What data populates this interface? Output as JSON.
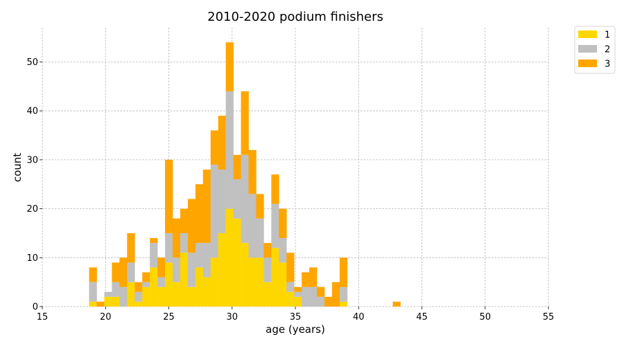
{
  "chart_data": {
    "type": "histogram-stacked",
    "title": "2010-2020 podium finishers",
    "xlabel": "age (years)",
    "ylabel": "count",
    "xlim": [
      15,
      55
    ],
    "ylim": [
      0,
      57
    ],
    "xticks": [
      15,
      20,
      25,
      30,
      35,
      40,
      45,
      50,
      55
    ],
    "yticks": [
      0,
      10,
      20,
      30,
      40,
      50
    ],
    "grid": true,
    "legend_position": "outside-top-right",
    "bin_width": 0.6,
    "bin_starts": [
      18.7,
      19.3,
      19.9,
      20.5,
      21.1,
      21.7,
      22.3,
      22.9,
      23.5,
      24.1,
      24.7,
      25.3,
      25.9,
      26.5,
      27.1,
      27.7,
      28.3,
      28.9,
      29.5,
      30.1,
      30.7,
      31.3,
      31.9,
      32.5,
      33.1,
      33.7,
      34.3,
      34.9,
      35.5,
      36.1,
      36.7,
      37.3,
      37.9,
      38.5,
      42.7
    ],
    "series": [
      {
        "name": "1",
        "color": "#FFD700",
        "values": [
          1,
          0,
          2,
          2,
          0,
          5,
          1,
          4,
          8,
          4,
          9,
          5,
          11,
          4,
          8,
          6,
          10,
          15,
          20,
          18,
          13,
          10,
          10,
          5,
          12,
          9,
          3,
          2,
          0,
          0,
          0,
          0,
          0,
          1,
          0
        ]
      },
      {
        "name": "2",
        "color": "#C0C0C0",
        "values": [
          4,
          0,
          1,
          3,
          4,
          4,
          2,
          1,
          5,
          2,
          6,
          5,
          4,
          7,
          5,
          7,
          19,
          13,
          24,
          8,
          18,
          13,
          8,
          5,
          9,
          5,
          2,
          1,
          4,
          4,
          2,
          0,
          0,
          3,
          0
        ]
      },
      {
        "name": "3",
        "color": "#FFA500",
        "values": [
          3,
          1,
          0,
          4,
          6,
          6,
          2,
          2,
          1,
          4,
          15,
          8,
          5,
          11,
          12,
          15,
          7,
          11,
          10,
          5,
          13,
          9,
          5,
          3,
          6,
          6,
          6,
          1,
          3,
          4,
          2,
          2,
          5,
          6,
          1
        ]
      }
    ]
  }
}
